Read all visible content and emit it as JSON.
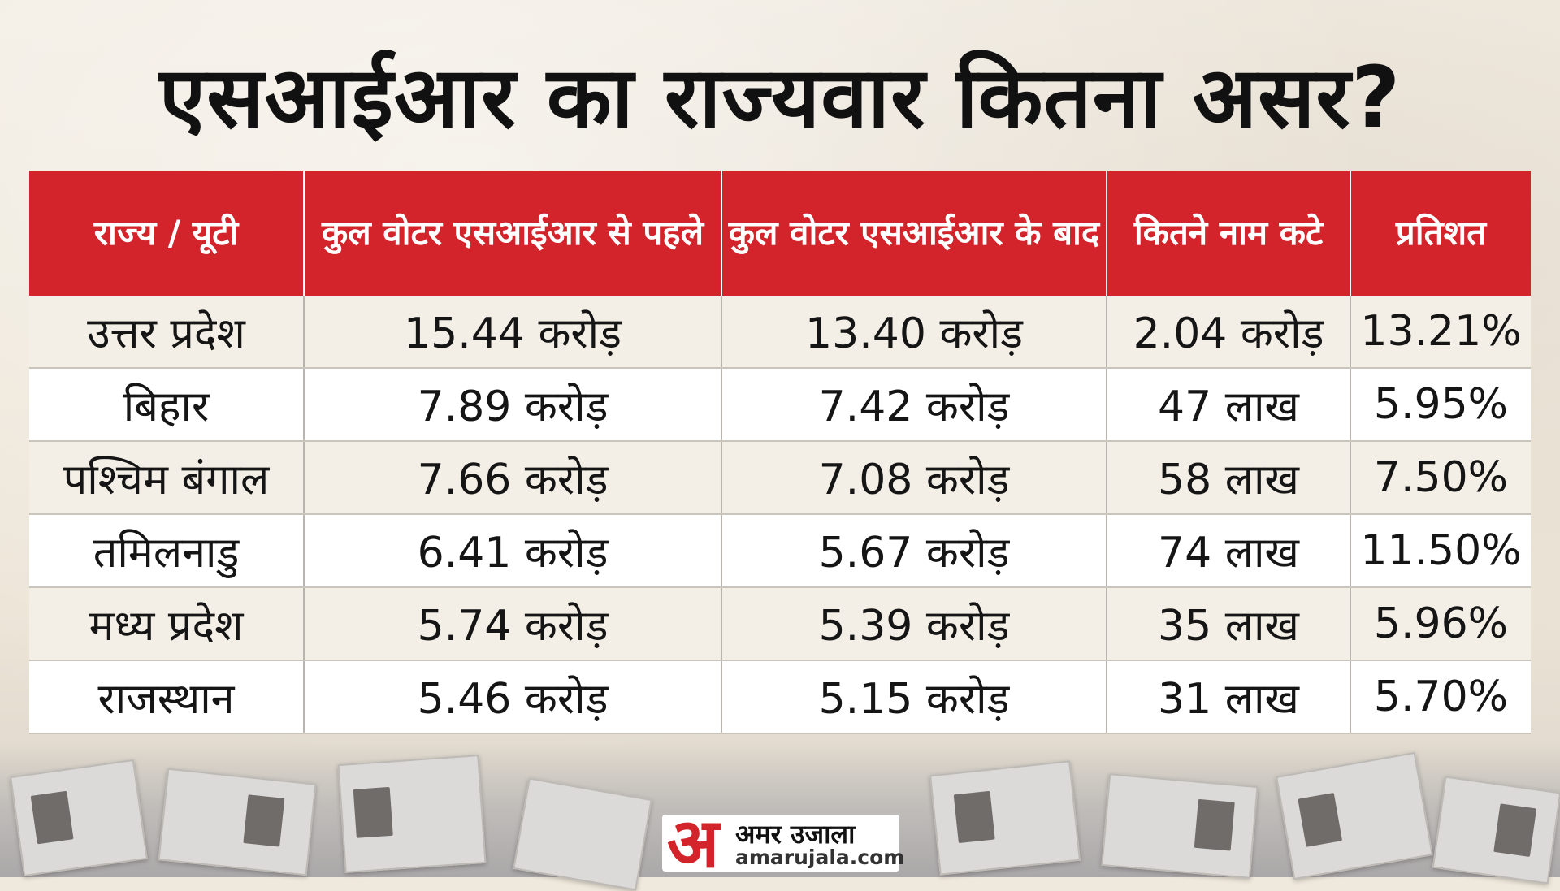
{
  "title": "एसआईआर का राज्यवार कितना असर?",
  "chart_data": {
    "type": "table",
    "columns": [
      "राज्य / यूटी",
      "कुल वोटर एसआईआर से पहले",
      "कुल वोटर एसआईआर के बाद",
      "कितने नाम कटे",
      "प्रतिशत"
    ],
    "rows": [
      [
        "उत्तर प्रदेश",
        "15.44 करोड़",
        "13.40 करोड़",
        "2.04 करोड़",
        "13.21%"
      ],
      [
        "बिहार",
        "7.89 करोड़",
        "7.42 करोड़",
        "47 लाख",
        "5.95%"
      ],
      [
        "पश्चिम बंगाल",
        "7.66 करोड़",
        "7.08 करोड़",
        "58 लाख",
        "7.50%"
      ],
      [
        "तमिलनाडु",
        "6.41 करोड़",
        "5.67 करोड़",
        "74 लाख",
        "11.50%"
      ],
      [
        "मध्य प्रदेश",
        "5.74 करोड़",
        "5.39 करोड़",
        "35 लाख",
        "5.96%"
      ],
      [
        "राजस्थान",
        "5.46 करोड़",
        "5.15 करोड़",
        "31 लाख",
        "5.70%"
      ]
    ]
  },
  "logo": {
    "mark": "अ",
    "name_hindi": "अमर उजाला",
    "url": "amarujala.com"
  },
  "colors": {
    "header_bg": "#d3232b",
    "header_text": "#ffffff",
    "background": "#efe8dc"
  }
}
